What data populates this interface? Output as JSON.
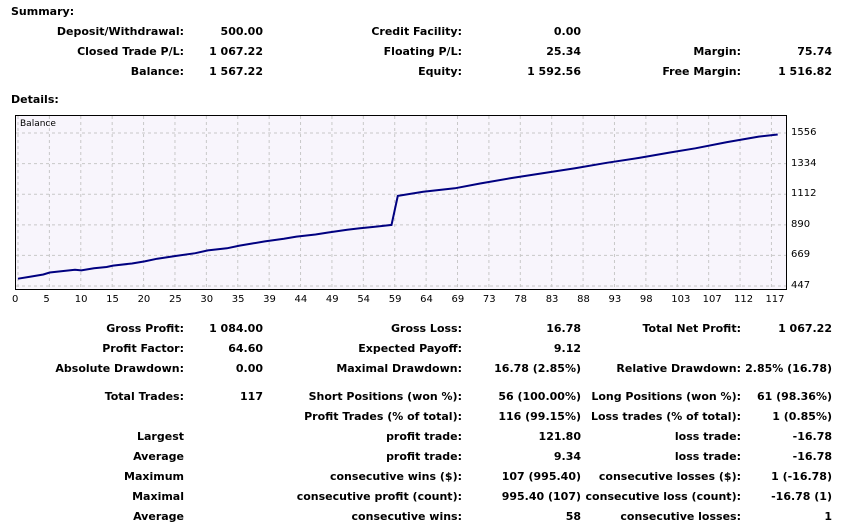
{
  "summary": {
    "header": "Summary:",
    "deposit_label": "Deposit/Withdrawal:",
    "deposit_value": "500.00",
    "closed_label": "Closed Trade P/L:",
    "closed_value": "1 067.22",
    "balance_label": "Balance:",
    "balance_value": "1 567.22",
    "credit_label": "Credit Facility:",
    "credit_value": "0.00",
    "floating_label": "Floating P/L:",
    "floating_value": "25.34",
    "equity_label": "Equity:",
    "equity_value": "1 592.56",
    "margin_label": "Margin:",
    "margin_value": "75.74",
    "free_margin_label": "Free Margin:",
    "free_margin_value": "1 516.82"
  },
  "details": {
    "header": "Details:"
  },
  "chart_data": {
    "type": "line",
    "title": "Balance",
    "x_ticks": [
      "0",
      "5",
      "10",
      "15",
      "20",
      "25",
      "30",
      "35",
      "39",
      "44",
      "49",
      "54",
      "59",
      "64",
      "69",
      "73",
      "78",
      "83",
      "88",
      "93",
      "98",
      "103",
      "107",
      "112",
      "117"
    ],
    "y_ticks": [
      "1556",
      "1334",
      "1112",
      "890",
      "669",
      "447"
    ],
    "ylim": [
      447,
      1556
    ],
    "xlim": [
      0,
      121
    ],
    "series": [
      {
        "color": "#000080",
        "x": [
          0,
          2,
          4,
          5,
          7,
          9,
          10,
          12,
          14,
          15,
          18,
          20,
          22,
          25,
          28,
          30,
          33,
          35,
          37,
          39,
          42,
          44,
          47,
          49,
          52,
          54,
          56,
          58,
          59,
          60,
          64,
          69,
          73,
          78,
          83,
          88,
          93,
          98,
          103,
          107,
          112,
          117,
          120
        ],
        "y": [
          500,
          515,
          530,
          545,
          555,
          565,
          560,
          575,
          585,
          595,
          610,
          625,
          645,
          665,
          685,
          705,
          720,
          740,
          755,
          770,
          790,
          805,
          820,
          835,
          855,
          865,
          875,
          885,
          890,
          1100,
          1130,
          1155,
          1190,
          1230,
          1265,
          1300,
          1340,
          1375,
          1415,
          1445,
          1490,
          1530,
          1545
        ]
      }
    ]
  },
  "stats": {
    "gross_profit_label": "Gross Profit:",
    "gross_profit_value": "1 084.00",
    "gross_loss_label": "Gross Loss:",
    "gross_loss_value": "16.78",
    "net_profit_label": "Total Net Profit:",
    "net_profit_value": "1 067.22",
    "profit_factor_label": "Profit Factor:",
    "profit_factor_value": "64.60",
    "expected_payoff_label": "Expected Payoff:",
    "expected_payoff_value": "9.12",
    "abs_dd_label": "Absolute Drawdown:",
    "abs_dd_value": "0.00",
    "max_dd_label": "Maximal Drawdown:",
    "max_dd_value": "16.78 (2.85%)",
    "rel_dd_label": "Relative Drawdown:",
    "rel_dd_value": "2.85% (16.78)",
    "total_trades_label": "Total Trades:",
    "total_trades_value": "117",
    "short_label": "Short Positions (won %):",
    "short_value": "56 (100.00%)",
    "long_label": "Long Positions (won %):",
    "long_value": "61 (98.36%)",
    "profit_trades_label": "Profit Trades (% of total):",
    "profit_trades_value": "116 (99.15%)",
    "loss_trades_label": "Loss trades (% of total):",
    "loss_trades_value": "1 (0.85%)",
    "largest_label": "Largest",
    "largest_profit_label": "profit trade:",
    "largest_profit_value": "121.80",
    "largest_loss_label": "loss trade:",
    "largest_loss_value": "-16.78",
    "average_label": "Average",
    "average_profit_label": "profit trade:",
    "average_profit_value": "9.34",
    "average_loss_label": "loss trade:",
    "average_loss_value": "-16.78",
    "maximum_label": "Maximum",
    "max_wins_label": "consecutive wins ($):",
    "max_wins_value": "107 (995.40)",
    "max_losses_label": "consecutive losses ($):",
    "max_losses_value": "1 (-16.78)",
    "maximal_label": "Maximal",
    "maximal_profit_label": "consecutive profit (count):",
    "maximal_profit_value": "995.40 (107)",
    "maximal_loss_label": "consecutive loss (count):",
    "maximal_loss_value": "-16.78 (1)",
    "average2_label": "Average",
    "avg_wins_label": "consecutive wins:",
    "avg_wins_value": "58",
    "avg_losses_label": "consecutive losses:",
    "avg_losses_value": "1"
  }
}
